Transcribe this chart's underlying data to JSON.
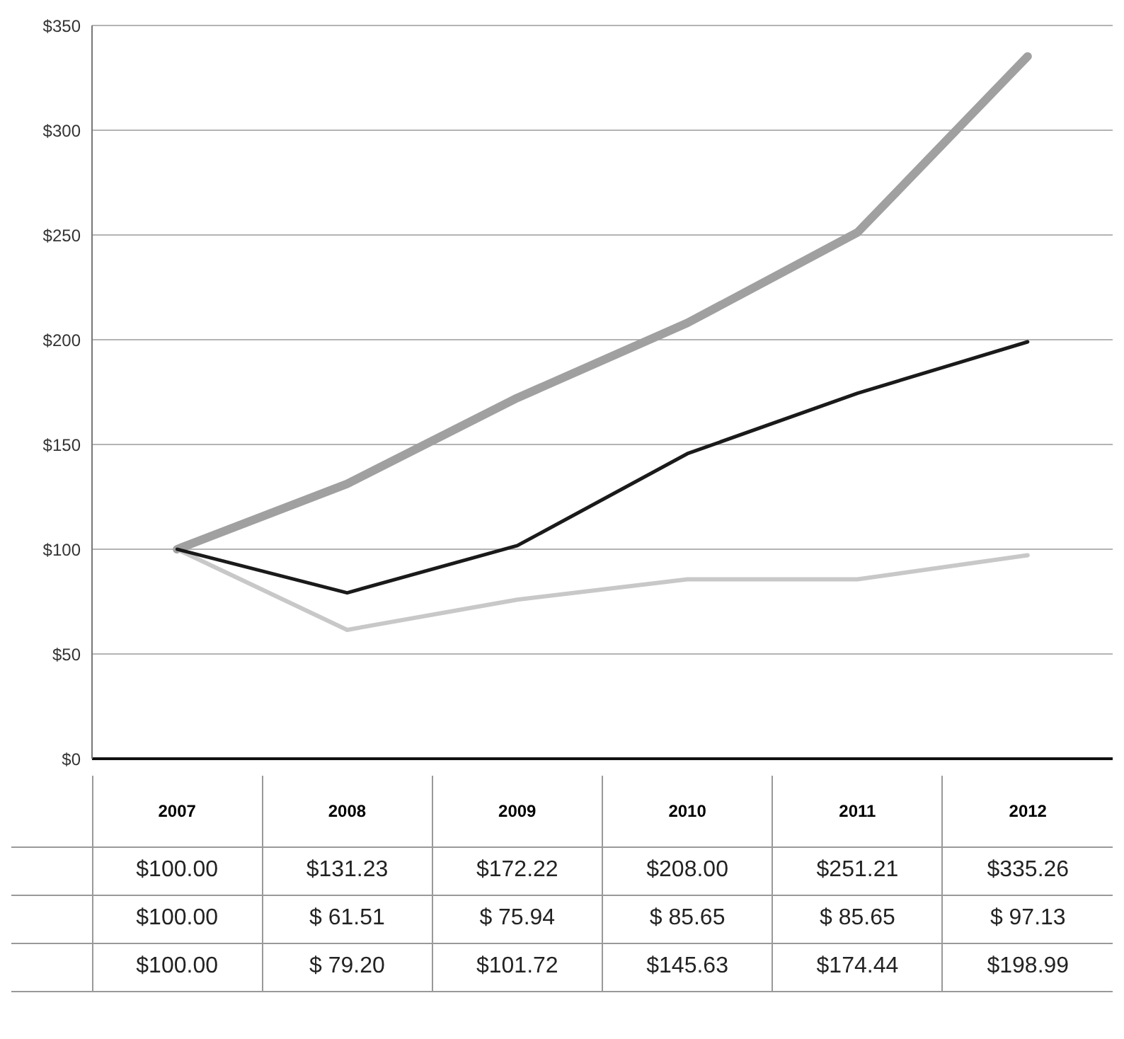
{
  "chart_data": {
    "type": "line",
    "categories": [
      "2007",
      "2008",
      "2009",
      "2010",
      "2011",
      "2012"
    ],
    "series": [
      {
        "color": "#a0a0a0",
        "values": [
          100,
          131.23,
          172.22,
          208,
          251.21,
          335.26
        ],
        "value_labels": [
          "$100.00",
          "$131.23",
          "$172.22",
          "$208.00",
          "$251.21",
          "$335.26"
        ]
      },
      {
        "color": "#c8c8c8",
        "values": [
          100,
          61.51,
          75.94,
          85.65,
          85.65,
          97.13
        ],
        "value_labels": [
          "$100.00",
          "$ 61.51",
          "$ 75.94",
          "$ 85.65",
          "$ 85.65",
          "$ 97.13"
        ]
      },
      {
        "color": "#1a1a1a",
        "values": [
          100,
          79.2,
          101.72,
          145.63,
          174.44,
          198.99
        ],
        "value_labels": [
          "$100.00",
          "$ 79.20",
          "$101.72",
          "$145.63",
          "$174.44",
          "$198.99"
        ]
      }
    ],
    "ylim": [
      0,
      350
    ],
    "yticks": [
      {
        "value": 0,
        "label": "$0"
      },
      {
        "value": 50,
        "label": "$50"
      },
      {
        "value": 100,
        "label": "$100"
      },
      {
        "value": 150,
        "label": "$150"
      },
      {
        "value": 200,
        "label": "$200"
      },
      {
        "value": 250,
        "label": "$250"
      },
      {
        "value": 300,
        "label": "$300"
      },
      {
        "value": 350,
        "label": "$350"
      }
    ],
    "grid": "y"
  }
}
